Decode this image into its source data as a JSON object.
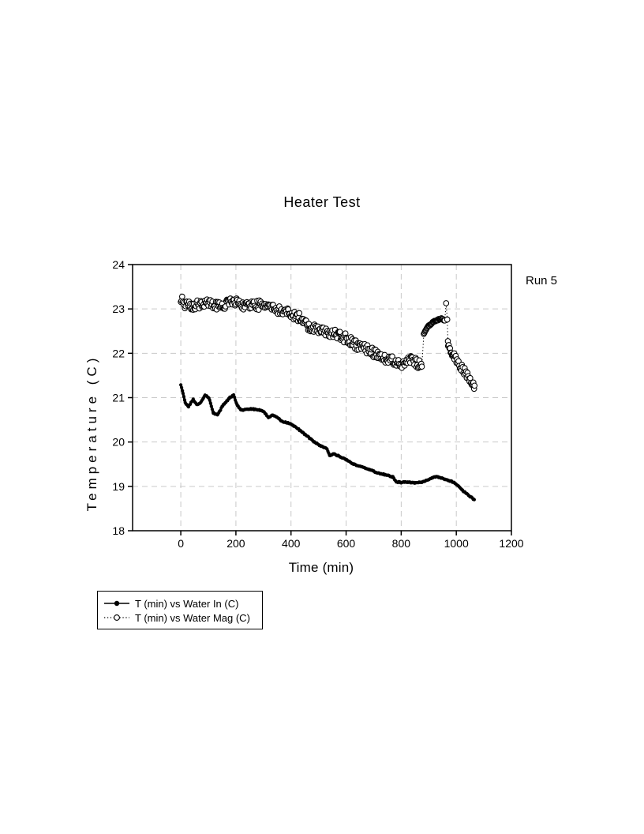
{
  "chart_data": {
    "type": "scatter",
    "title": "Heater Test",
    "xlabel": "Time (min)",
    "ylabel": "Temperature (C)",
    "annotation": {
      "text": "Run 5",
      "position": "outside-right-top"
    },
    "xlim": [
      -175,
      1200
    ],
    "ylim": [
      18,
      24
    ],
    "xticks": [
      0,
      200,
      400,
      600,
      800,
      1000,
      1200
    ],
    "yticks": [
      18,
      19,
      20,
      21,
      22,
      23,
      24
    ],
    "grid": {
      "show": true,
      "style": "dashed",
      "color": "#c9c9c9"
    },
    "colors": {
      "foreground": "#000000",
      "background": "#ffffff"
    },
    "legend": {
      "position": "below-plot-left",
      "border": true
    },
    "series": [
      {
        "name": "T (min) vs Water In (C)",
        "marker": "filled-circle",
        "line": "solid",
        "color": "#000000",
        "segments": [
          {
            "step": 3,
            "jitter": 0.012,
            "anchors": [
              [
                0,
                21.3
              ],
              [
                8,
                21.1
              ],
              [
                16,
                20.88
              ],
              [
                28,
                20.8
              ],
              [
                45,
                20.96
              ],
              [
                58,
                20.85
              ],
              [
                70,
                20.88
              ],
              [
                88,
                21.06
              ],
              [
                102,
                21.0
              ],
              [
                118,
                20.65
              ],
              [
                135,
                20.62
              ],
              [
                152,
                20.82
              ],
              [
                178,
                21.0
              ],
              [
                192,
                21.06
              ],
              [
                205,
                20.82
              ],
              [
                220,
                20.72
              ],
              [
                245,
                20.74
              ],
              [
                270,
                20.74
              ],
              [
                300,
                20.7
              ],
              [
                318,
                20.54
              ],
              [
                332,
                20.6
              ],
              [
                348,
                20.57
              ],
              [
                368,
                20.46
              ],
              [
                395,
                20.42
              ],
              [
                425,
                20.3
              ],
              [
                455,
                20.15
              ],
              [
                485,
                20.0
              ],
              [
                510,
                19.9
              ],
              [
                528,
                19.87
              ],
              [
                540,
                19.7
              ],
              [
                556,
                19.73
              ],
              [
                575,
                19.68
              ],
              [
                600,
                19.6
              ],
              [
                628,
                19.5
              ],
              [
                655,
                19.44
              ],
              [
                685,
                19.38
              ],
              [
                715,
                19.3
              ],
              [
                745,
                19.26
              ],
              [
                770,
                19.21
              ],
              [
                782,
                19.1
              ],
              [
                800,
                19.09
              ],
              [
                825,
                19.1
              ],
              [
                850,
                19.08
              ],
              [
                872,
                19.09
              ],
              [
                892,
                19.14
              ],
              [
                912,
                19.19
              ],
              [
                930,
                19.22
              ],
              [
                945,
                19.19
              ],
              [
                962,
                19.15
              ],
              [
                980,
                19.12
              ],
              [
                998,
                19.06
              ],
              [
                1010,
                19.0
              ],
              [
                1024,
                18.9
              ],
              [
                1038,
                18.83
              ],
              [
                1052,
                18.76
              ],
              [
                1065,
                18.7
              ]
            ]
          }
        ]
      },
      {
        "name": "T (min) vs Water Mag (C)",
        "marker": "open-circle",
        "line": "dotted",
        "color": "#000000",
        "segments": [
          {
            "step": 2.5,
            "jitter": 0.11,
            "anchors": [
              [
                0,
                23.22
              ],
              [
                20,
                23.08
              ],
              [
                40,
                23.06
              ],
              [
                60,
                23.12
              ],
              [
                80,
                23.1
              ],
              [
                100,
                23.12
              ],
              [
                120,
                23.08
              ],
              [
                140,
                23.05
              ],
              [
                160,
                23.1
              ],
              [
                185,
                23.15
              ],
              [
                210,
                23.13
              ],
              [
                235,
                23.08
              ],
              [
                260,
                23.07
              ],
              [
                285,
                23.09
              ],
              [
                310,
                23.04
              ],
              [
                335,
                23.0
              ],
              [
                360,
                22.96
              ],
              [
                385,
                22.91
              ],
              [
                410,
                22.87
              ],
              [
                435,
                22.78
              ],
              [
                455,
                22.67
              ],
              [
                475,
                22.57
              ],
              [
                495,
                22.52
              ],
              [
                520,
                22.47
              ],
              [
                545,
                22.46
              ],
              [
                570,
                22.42
              ],
              [
                595,
                22.35
              ],
              [
                620,
                22.26
              ],
              [
                645,
                22.16
              ],
              [
                670,
                22.1
              ],
              [
                695,
                22.03
              ],
              [
                715,
                21.97
              ],
              [
                735,
                21.9
              ],
              [
                755,
                21.85
              ],
              [
                775,
                21.82
              ],
              [
                795,
                21.79
              ],
              [
                810,
                21.76
              ],
              [
                825,
                21.8
              ],
              [
                840,
                21.84
              ],
              [
                856,
                21.79
              ],
              [
                868,
                21.73
              ],
              [
                875,
                21.7
              ]
            ]
          },
          {
            "step": 2,
            "jitter": 0.015,
            "anchors": [
              [
                882,
                22.45
              ],
              [
                890,
                22.54
              ],
              [
                898,
                22.61
              ],
              [
                908,
                22.66
              ],
              [
                918,
                22.71
              ],
              [
                928,
                22.74
              ],
              [
                938,
                22.77
              ],
              [
                948,
                22.78
              ],
              [
                958,
                22.74
              ]
            ]
          },
          {
            "step": 2,
            "jitter": 0,
            "anchors": [
              [
                963,
                23.13
              ]
            ]
          },
          {
            "step": 2.5,
            "jitter": 0.09,
            "anchors": [
              [
                967,
                22.68
              ],
              [
                970,
                22.2
              ],
              [
                977,
                22.07
              ],
              [
                985,
                21.98
              ],
              [
                993,
                21.92
              ],
              [
                1003,
                21.84
              ],
              [
                1013,
                21.74
              ],
              [
                1023,
                21.64
              ],
              [
                1033,
                21.56
              ],
              [
                1043,
                21.47
              ],
              [
                1053,
                21.38
              ],
              [
                1062,
                21.3
              ],
              [
                1066,
                21.27
              ]
            ]
          }
        ]
      }
    ]
  }
}
